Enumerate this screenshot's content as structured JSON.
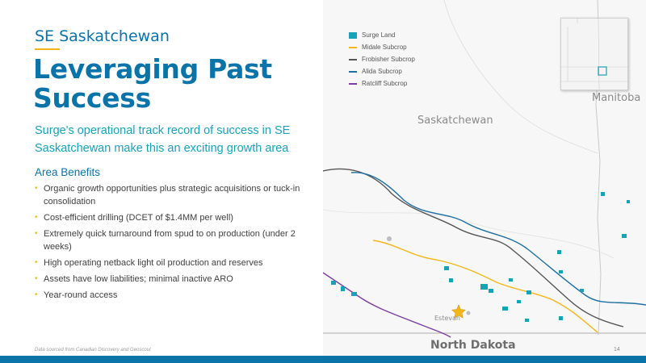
{
  "header": {
    "region": "SE Saskatchewan",
    "title": "Leveraging Past Success",
    "subtitle": "Surge's operational track record of success in SE Saskatchewan make this an exciting growth area"
  },
  "benefits": {
    "heading": "Area Benefits",
    "items": [
      "Organic growth opportunities plus strategic acquisitions or tuck-in consolidation",
      "Cost-efficient drilling (DCET of $1.4MM per well)",
      "Extremely quick turnaround from spud to on production (under 2 weeks)",
      "High operating netback light oil production and reserves",
      "Assets have low liabilities; minimal inactive ARO",
      "Year-round access"
    ]
  },
  "footnote": "Data sourced from Canadian Discovery and Geoscout",
  "page_number": "14",
  "map": {
    "labels": {
      "saskatchewan": "Saskatchewan",
      "manitoba": "Manitoba",
      "north_dakota": "North Dakota",
      "estevan": "Estevan"
    },
    "legend": [
      {
        "label": "Surge Land",
        "color": "#17a2b8",
        "swatch": "box"
      },
      {
        "label": "Midale Subcrop",
        "color": "#f2b617",
        "swatch": "line"
      },
      {
        "label": "Frobisher Subcrop",
        "color": "#555555",
        "swatch": "line"
      },
      {
        "label": "Alida Subcrop",
        "color": "#1e6fa0",
        "swatch": "line"
      },
      {
        "label": "Ratcliff Subcrop",
        "color": "#7b3fa0",
        "swatch": "line"
      }
    ]
  },
  "colors": {
    "brand_blue": "#0a73a8",
    "accent_teal": "#17a2b8",
    "accent_yellow": "#f2b617"
  }
}
